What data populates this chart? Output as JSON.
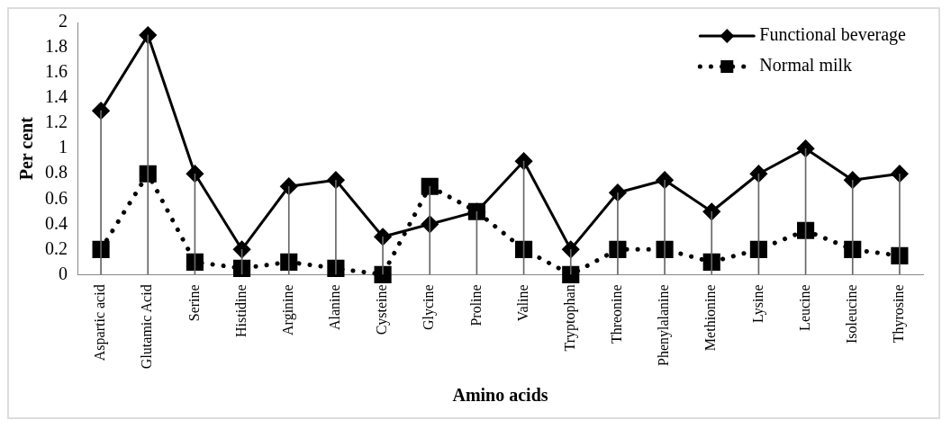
{
  "chart_data": {
    "type": "line",
    "xlabel": "Amino acids",
    "ylabel": "Per cent",
    "categories": [
      "Aspartic acid",
      "Glutamic Acid",
      "Serine",
      "Histidine",
      "Arginine",
      "Alanine",
      "Cysteine",
      "Glycine",
      "Proline",
      "Valine",
      "Tryptophan",
      "Threonine",
      "Phenylalanine",
      "Methionine",
      "Lysine",
      "Leucine",
      "Isoleucine",
      "Thyrosine"
    ],
    "series": [
      {
        "name": "Functional beverage",
        "color": "#000000",
        "marker": "diamond",
        "line_style": "solid",
        "values": [
          1.3,
          1.9,
          0.8,
          0.2,
          0.7,
          0.75,
          0.3,
          0.4,
          0.5,
          0.9,
          0.2,
          0.65,
          0.75,
          0.5,
          0.8,
          1.0,
          0.75,
          0.8
        ]
      },
      {
        "name": "Normal milk",
        "color": "#000000",
        "marker": "square",
        "line_style": "dotted",
        "values": [
          0.2,
          0.8,
          0.1,
          0.05,
          0.1,
          0.05,
          0,
          0.7,
          0.5,
          0.2,
          0,
          0.2,
          0.2,
          0.1,
          0.2,
          0.35,
          0.2,
          0.15
        ]
      },
      {
        "type": "bar",
        "color": "#666666",
        "values": [
          1.3,
          1.9,
          0.8,
          0.2,
          0.7,
          0.75,
          0.3,
          0.7,
          0.5,
          0.9,
          0.2,
          0.65,
          0.75,
          0.5,
          0.8,
          1.0,
          0.75,
          0.8
        ]
      }
    ],
    "ylim": [
      0,
      2
    ],
    "yticks": [
      0,
      0.2,
      0.4,
      0.6,
      0.8,
      1,
      1.2,
      1.4,
      1.6,
      1.8,
      2
    ],
    "grid": false,
    "legend": "top right"
  }
}
